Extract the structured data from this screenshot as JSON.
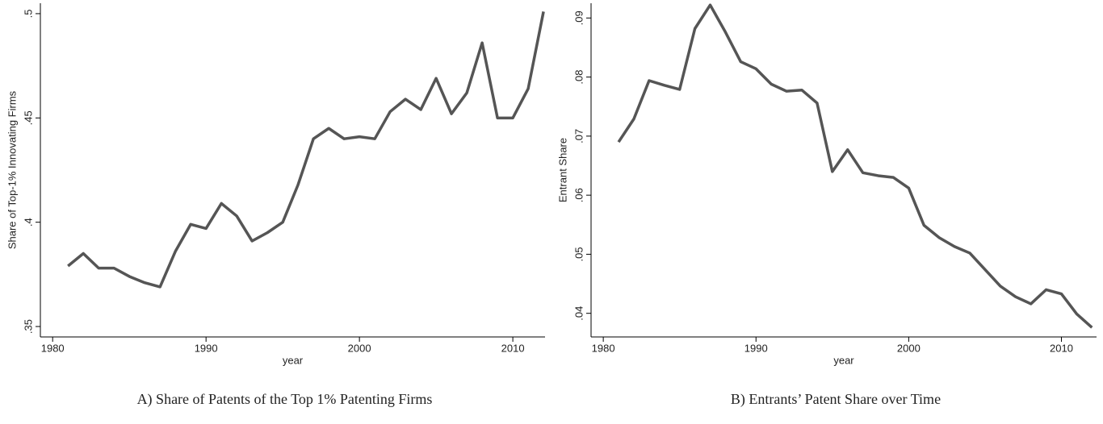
{
  "chart_data": [
    {
      "type": "line",
      "caption": "A) Share of Patents of the Top 1% Patenting Firms",
      "x_label": "year",
      "y_label": "Share of Top-1% Innovating Firms",
      "x": [
        1981,
        1982,
        1983,
        1984,
        1985,
        1986,
        1987,
        1988,
        1989,
        1990,
        1991,
        1992,
        1993,
        1994,
        1995,
        1996,
        1997,
        1998,
        1999,
        2000,
        2001,
        2002,
        2003,
        2004,
        2005,
        2006,
        2007,
        2008,
        2009,
        2010,
        2011,
        2012
      ],
      "values": [
        0.379,
        0.385,
        0.378,
        0.378,
        0.374,
        0.371,
        0.369,
        0.386,
        0.399,
        0.397,
        0.409,
        0.403,
        0.391,
        0.395,
        0.4,
        0.418,
        0.44,
        0.445,
        0.44,
        0.441,
        0.44,
        0.453,
        0.459,
        0.454,
        0.469,
        0.452,
        0.462,
        0.486,
        0.45,
        0.45,
        0.464,
        0.501
      ],
      "color": "#555555",
      "xlim": [
        1979.2,
        2012.1
      ],
      "xticks": [
        1980,
        1990,
        2000,
        2010
      ],
      "ylim": [
        0.345,
        0.505
      ],
      "yticks": [
        {
          "value": 0.35,
          "label": ".35"
        },
        {
          "value": 0.4,
          "label": ".4"
        },
        {
          "value": 0.45,
          "label": ".45"
        },
        {
          "value": 0.5,
          "label": ".5"
        }
      ]
    },
    {
      "type": "line",
      "caption": "B) Entrants’ Patent Share over Time",
      "x_label": "year",
      "y_label": "Entrant Share",
      "x": [
        1981,
        1982,
        1983,
        1984,
        1985,
        1986,
        1987,
        1988,
        1989,
        1990,
        1991,
        1992,
        1993,
        1994,
        1995,
        1996,
        1997,
        1998,
        1999,
        2000,
        2001,
        2002,
        2003,
        2004,
        2005,
        2006,
        2007,
        2008,
        2009,
        2010,
        2011,
        2012
      ],
      "values": [
        0.069,
        0.0729,
        0.0794,
        0.0786,
        0.0779,
        0.0882,
        0.0922,
        0.0876,
        0.0826,
        0.0814,
        0.0788,
        0.0776,
        0.0778,
        0.0756,
        0.064,
        0.0677,
        0.0638,
        0.0633,
        0.063,
        0.0612,
        0.0549,
        0.0528,
        0.0513,
        0.0502,
        0.0474,
        0.0446,
        0.0428,
        0.0416,
        0.044,
        0.0433,
        0.0399,
        0.0376
      ],
      "color": "#555555",
      "xlim": [
        1979.2,
        2012.3
      ],
      "xticks": [
        1980,
        1990,
        2000,
        2010
      ],
      "ylim": [
        0.036,
        0.0925
      ],
      "yticks": [
        {
          "value": 0.04,
          "label": ".04"
        },
        {
          "value": 0.05,
          "label": ".05"
        },
        {
          "value": 0.06,
          "label": ".06"
        },
        {
          "value": 0.07,
          "label": ".07"
        },
        {
          "value": 0.08,
          "label": ".08"
        },
        {
          "value": 0.09,
          "label": ".09"
        }
      ]
    }
  ]
}
